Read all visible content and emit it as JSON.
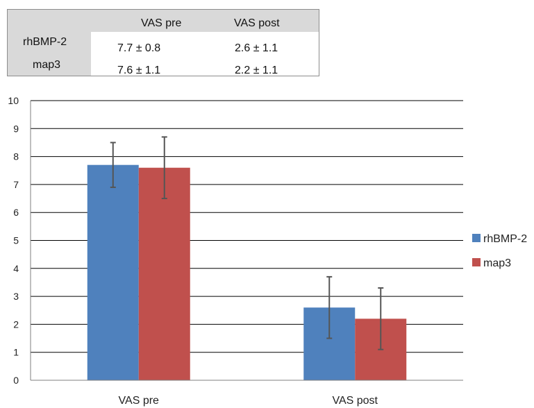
{
  "table": {
    "columns": [
      "VAS pre",
      "VAS post"
    ],
    "rows": [
      {
        "label": "rhBMP-2",
        "values": [
          "7.7 ± 0.8",
          "2.6 ± 1.1"
        ]
      },
      {
        "label": "map3",
        "values": [
          "7.6 ± 1.1",
          "2.2 ± 1.1"
        ]
      }
    ]
  },
  "chart_data": {
    "type": "bar",
    "categories": [
      "VAS pre",
      "VAS post"
    ],
    "series": [
      {
        "name": "rhBMP-2",
        "color": "#4F81BD",
        "values": [
          7.7,
          2.6
        ],
        "errors": [
          0.8,
          1.1
        ]
      },
      {
        "name": "map3",
        "color": "#C0504D",
        "values": [
          7.6,
          2.2
        ],
        "errors": [
          1.1,
          1.1
        ]
      }
    ],
    "ylim": [
      0,
      10
    ],
    "yticks": [
      0,
      1,
      2,
      3,
      4,
      5,
      6,
      7,
      8,
      9,
      10
    ],
    "grid": true,
    "legend": "right",
    "title": "",
    "xlabel": "",
    "ylabel": ""
  }
}
